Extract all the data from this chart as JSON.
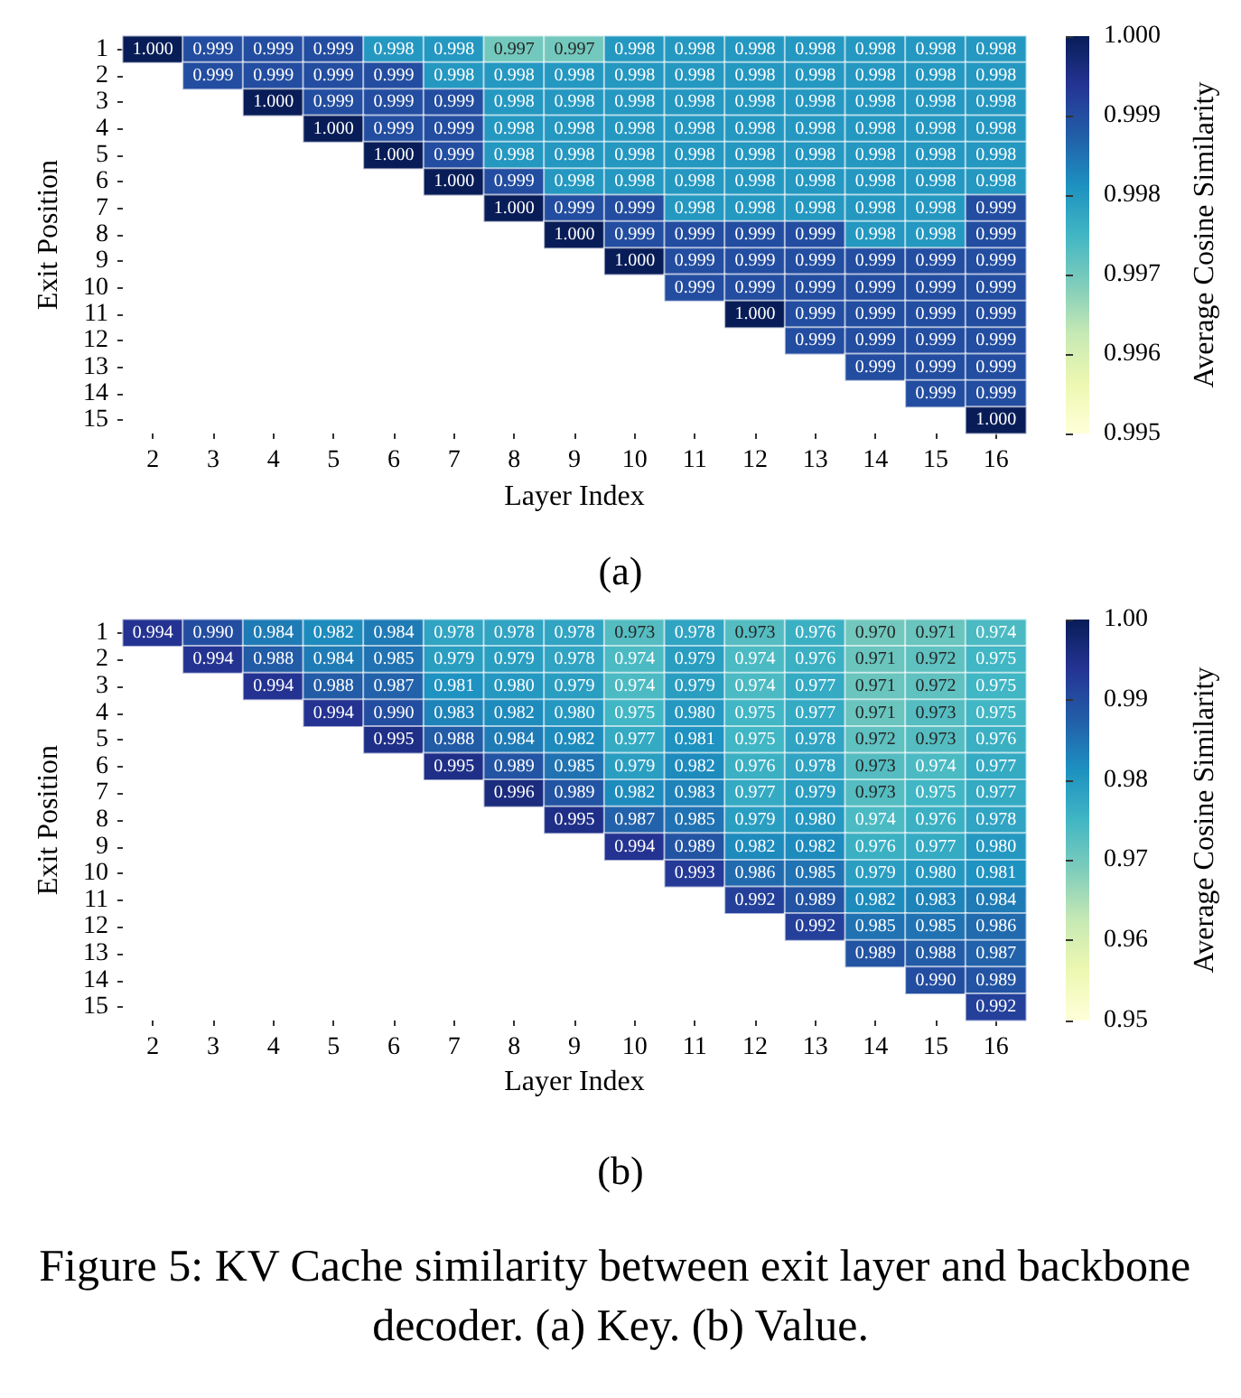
{
  "chart_data": [
    {
      "type": "heatmap",
      "title": "(a)",
      "xlabel": "Layer Index",
      "ylabel": "Exit Position",
      "clabel": "Average Cosine Similarity",
      "categories": [
        "2",
        "3",
        "4",
        "5",
        "6",
        "7",
        "8",
        "9",
        "10",
        "11",
        "12",
        "13",
        "14",
        "15",
        "16"
      ],
      "y_categories": [
        "1",
        "2",
        "3",
        "4",
        "5",
        "6",
        "7",
        "8",
        "9",
        "10",
        "11",
        "12",
        "13",
        "14",
        "15"
      ],
      "clim": [
        0.995,
        1.0
      ],
      "cticks": [
        0.995,
        0.996,
        0.997,
        0.998,
        0.999,
        {
          "value": 1.0,
          "label": "1.000"
        }
      ],
      "cells": [
        [
          1.0,
          0.999,
          0.999,
          0.999,
          0.998,
          0.998,
          0.997,
          0.997,
          0.998,
          0.998,
          0.998,
          0.998,
          0.998,
          0.998,
          0.998
        ],
        [
          null,
          0.999,
          0.999,
          0.999,
          0.999,
          0.998,
          0.998,
          0.998,
          0.998,
          0.998,
          0.998,
          0.998,
          0.998,
          0.998,
          0.998
        ],
        [
          null,
          null,
          1.0,
          0.999,
          0.999,
          0.999,
          0.998,
          0.998,
          0.998,
          0.998,
          0.998,
          0.998,
          0.998,
          0.998,
          0.998
        ],
        [
          null,
          null,
          null,
          1.0,
          0.999,
          0.999,
          0.998,
          0.998,
          0.998,
          0.998,
          0.998,
          0.998,
          0.998,
          0.998,
          0.998
        ],
        [
          null,
          null,
          null,
          null,
          1.0,
          0.999,
          0.998,
          0.998,
          0.998,
          0.998,
          0.998,
          0.998,
          0.998,
          0.998,
          0.998
        ],
        [
          null,
          null,
          null,
          null,
          null,
          1.0,
          0.999,
          0.998,
          0.998,
          0.998,
          0.998,
          0.998,
          0.998,
          0.998,
          0.998
        ],
        [
          null,
          null,
          null,
          null,
          null,
          null,
          1.0,
          0.999,
          0.999,
          0.998,
          0.998,
          0.998,
          0.998,
          0.998,
          0.999
        ],
        [
          null,
          null,
          null,
          null,
          null,
          null,
          null,
          1.0,
          0.999,
          0.999,
          0.999,
          0.999,
          0.998,
          0.998,
          0.999
        ],
        [
          null,
          null,
          null,
          null,
          null,
          null,
          null,
          null,
          1.0,
          0.999,
          0.999,
          0.999,
          0.999,
          0.999,
          0.999
        ],
        [
          null,
          null,
          null,
          null,
          null,
          null,
          null,
          null,
          null,
          0.999,
          0.999,
          0.999,
          0.999,
          0.999,
          0.999
        ],
        [
          null,
          null,
          null,
          null,
          null,
          null,
          null,
          null,
          null,
          null,
          1.0,
          0.999,
          0.999,
          0.999,
          0.999
        ],
        [
          null,
          null,
          null,
          null,
          null,
          null,
          null,
          null,
          null,
          null,
          null,
          0.999,
          0.999,
          0.999,
          0.999
        ],
        [
          null,
          null,
          null,
          null,
          null,
          null,
          null,
          null,
          null,
          null,
          null,
          null,
          0.999,
          0.999,
          0.999
        ],
        [
          null,
          null,
          null,
          null,
          null,
          null,
          null,
          null,
          null,
          null,
          null,
          null,
          null,
          0.999,
          0.999
        ],
        [
          null,
          null,
          null,
          null,
          null,
          null,
          null,
          null,
          null,
          null,
          null,
          null,
          null,
          null,
          1.0
        ]
      ],
      "cell_labels": [
        [
          "1.000",
          "0.999",
          "0.999",
          "0.999",
          "0.998",
          "0.998",
          "0.997",
          "0.997",
          "0.998",
          "0.998",
          "0.998",
          "0.998",
          "0.998",
          "0.998",
          "0.998"
        ],
        [
          null,
          "0.999",
          "0.999",
          "0.999",
          "0.999",
          "0.998",
          "0.998",
          "0.998",
          "0.998",
          "0.998",
          "0.998",
          "0.998",
          "0.998",
          "0.998",
          "0.998"
        ],
        [
          null,
          null,
          "1.000",
          "0.999",
          "0.999",
          "0.999",
          "0.998",
          "0.998",
          "0.998",
          "0.998",
          "0.998",
          "0.998",
          "0.998",
          "0.998",
          "0.998"
        ],
        [
          null,
          null,
          null,
          "1.000",
          "0.999",
          "0.999",
          "0.998",
          "0.998",
          "0.998",
          "0.998",
          "0.998",
          "0.998",
          "0.998",
          "0.998",
          "0.998"
        ],
        [
          null,
          null,
          null,
          null,
          "1.000",
          "0.999",
          "0.998",
          "0.998",
          "0.998",
          "0.998",
          "0.998",
          "0.998",
          "0.998",
          "0.998",
          "0.998"
        ],
        [
          null,
          null,
          null,
          null,
          null,
          "1.000",
          "0.999",
          "0.998",
          "0.998",
          "0.998",
          "0.998",
          "0.998",
          "0.998",
          "0.998",
          "0.998"
        ],
        [
          null,
          null,
          null,
          null,
          null,
          null,
          "1.000",
          "0.999",
          "0.999",
          "0.998",
          "0.998",
          "0.998",
          "0.998",
          "0.998",
          "0.999"
        ],
        [
          null,
          null,
          null,
          null,
          null,
          null,
          null,
          "1.000",
          "0.999",
          "0.999",
          "0.999",
          "0.999",
          "0.998",
          "0.998",
          "0.999"
        ],
        [
          null,
          null,
          null,
          null,
          null,
          null,
          null,
          null,
          "1.000",
          "0.999",
          "0.999",
          "0.999",
          "0.999",
          "0.999",
          "0.999"
        ],
        [
          null,
          null,
          null,
          null,
          null,
          null,
          null,
          null,
          null,
          "0.999",
          "0.999",
          "0.999",
          "0.999",
          "0.999",
          "0.999"
        ],
        [
          null,
          null,
          null,
          null,
          null,
          null,
          null,
          null,
          null,
          null,
          "1.000",
          "0.999",
          "0.999",
          "0.999",
          "0.999"
        ],
        [
          null,
          null,
          null,
          null,
          null,
          null,
          null,
          null,
          null,
          null,
          null,
          "0.999",
          "0.999",
          "0.999",
          "0.999"
        ],
        [
          null,
          null,
          null,
          null,
          null,
          null,
          null,
          null,
          null,
          null,
          null,
          null,
          "0.999",
          "0.999",
          "0.999"
        ],
        [
          null,
          null,
          null,
          null,
          null,
          null,
          null,
          null,
          null,
          null,
          null,
          null,
          null,
          "0.999",
          "0.999"
        ],
        [
          null,
          null,
          null,
          null,
          null,
          null,
          null,
          null,
          null,
          null,
          null,
          null,
          null,
          null,
          "1.000"
        ]
      ]
    },
    {
      "type": "heatmap",
      "title": "(b)",
      "xlabel": "Layer Index",
      "ylabel": "Exit Position",
      "clabel": "Average Cosine Similarity",
      "annotations": [
        "Figure 5: KV Cache similarity between exit layer and backbone decoder. (a) Key. (b) Value."
      ],
      "categories": [
        "2",
        "3",
        "4",
        "5",
        "6",
        "7",
        "8",
        "9",
        "10",
        "11",
        "12",
        "13",
        "14",
        "15",
        "16"
      ],
      "y_categories": [
        "1",
        "2",
        "3",
        "4",
        "5",
        "6",
        "7",
        "8",
        "9",
        "10",
        "11",
        "12",
        "13",
        "14",
        "15"
      ],
      "clim": [
        0.95,
        1.0
      ],
      "cticks": [
        0.95,
        0.96,
        0.97,
        0.98,
        0.99,
        {
          "value": 1.0,
          "label": "1.00"
        }
      ],
      "cells": [
        [
          0.994,
          0.99,
          0.984,
          0.982,
          0.984,
          0.978,
          0.978,
          0.978,
          0.973,
          0.978,
          0.973,
          0.976,
          0.97,
          0.971,
          0.974
        ],
        [
          null,
          0.994,
          0.988,
          0.984,
          0.985,
          0.979,
          0.979,
          0.978,
          0.974,
          0.979,
          0.974,
          0.976,
          0.971,
          0.972,
          0.975
        ],
        [
          null,
          null,
          0.994,
          0.988,
          0.987,
          0.981,
          0.98,
          0.979,
          0.974,
          0.979,
          0.974,
          0.977,
          0.971,
          0.972,
          0.975
        ],
        [
          null,
          null,
          null,
          0.994,
          0.99,
          0.983,
          0.982,
          0.98,
          0.975,
          0.98,
          0.975,
          0.977,
          0.971,
          0.973,
          0.975
        ],
        [
          null,
          null,
          null,
          null,
          0.995,
          0.988,
          0.984,
          0.982,
          0.977,
          0.981,
          0.975,
          0.978,
          0.972,
          0.973,
          0.976
        ],
        [
          null,
          null,
          null,
          null,
          null,
          0.995,
          0.989,
          0.985,
          0.979,
          0.982,
          0.976,
          0.978,
          0.973,
          0.974,
          0.977
        ],
        [
          null,
          null,
          null,
          null,
          null,
          null,
          0.996,
          0.989,
          0.982,
          0.983,
          0.977,
          0.979,
          0.973,
          0.975,
          0.977
        ],
        [
          null,
          null,
          null,
          null,
          null,
          null,
          null,
          0.995,
          0.987,
          0.985,
          0.979,
          0.98,
          0.974,
          0.976,
          0.978
        ],
        [
          null,
          null,
          null,
          null,
          null,
          null,
          null,
          null,
          0.994,
          0.989,
          0.982,
          0.982,
          0.976,
          0.977,
          0.98
        ],
        [
          null,
          null,
          null,
          null,
          null,
          null,
          null,
          null,
          null,
          0.993,
          0.986,
          0.985,
          0.979,
          0.98,
          0.981
        ],
        [
          null,
          null,
          null,
          null,
          null,
          null,
          null,
          null,
          null,
          null,
          0.992,
          0.989,
          0.982,
          0.983,
          0.984
        ],
        [
          null,
          null,
          null,
          null,
          null,
          null,
          null,
          null,
          null,
          null,
          null,
          0.992,
          0.985,
          0.985,
          0.986
        ],
        [
          null,
          null,
          null,
          null,
          null,
          null,
          null,
          null,
          null,
          null,
          null,
          null,
          0.989,
          0.988,
          0.987
        ],
        [
          null,
          null,
          null,
          null,
          null,
          null,
          null,
          null,
          null,
          null,
          null,
          null,
          null,
          0.99,
          0.989
        ],
        [
          null,
          null,
          null,
          null,
          null,
          null,
          null,
          null,
          null,
          null,
          null,
          null,
          null,
          null,
          0.992
        ]
      ],
      "cell_labels": [
        [
          "0.994",
          "0.990",
          "0.984",
          "0.982",
          "0.984",
          "0.978",
          "0.978",
          "0.978",
          "0.973",
          "0.978",
          "0.973",
          "0.976",
          "0.970",
          "0.971",
          "0.974"
        ],
        [
          null,
          "0.994",
          "0.988",
          "0.984",
          "0.985",
          "0.979",
          "0.979",
          "0.978",
          "0.974",
          "0.979",
          "0.974",
          "0.976",
          "0.971",
          "0.972",
          "0.975"
        ],
        [
          null,
          null,
          "0.994",
          "0.988",
          "0.987",
          "0.981",
          "0.980",
          "0.979",
          "0.974",
          "0.979",
          "0.974",
          "0.977",
          "0.971",
          "0.972",
          "0.975"
        ],
        [
          null,
          null,
          null,
          "0.994",
          "0.990",
          "0.983",
          "0.982",
          "0.980",
          "0.975",
          "0.980",
          "0.975",
          "0.977",
          "0.971",
          "0.973",
          "0.975"
        ],
        [
          null,
          null,
          null,
          null,
          "0.995",
          "0.988",
          "0.984",
          "0.982",
          "0.977",
          "0.981",
          "0.975",
          "0.978",
          "0.972",
          "0.973",
          "0.976"
        ],
        [
          null,
          null,
          null,
          null,
          null,
          "0.995",
          "0.989",
          "0.985",
          "0.979",
          "0.982",
          "0.976",
          "0.978",
          "0.973",
          "0.974",
          "0.977"
        ],
        [
          null,
          null,
          null,
          null,
          null,
          null,
          "0.996",
          "0.989",
          "0.982",
          "0.983",
          "0.977",
          "0.979",
          "0.973",
          "0.975",
          "0.977"
        ],
        [
          null,
          null,
          null,
          null,
          null,
          null,
          null,
          "0.995",
          "0.987",
          "0.985",
          "0.979",
          "0.980",
          "0.974",
          "0.976",
          "0.978"
        ],
        [
          null,
          null,
          null,
          null,
          null,
          null,
          null,
          null,
          "0.994",
          "0.989",
          "0.982",
          "0.982",
          "0.976",
          "0.977",
          "0.980"
        ],
        [
          null,
          null,
          null,
          null,
          null,
          null,
          null,
          null,
          null,
          "0.993",
          "0.986",
          "0.985",
          "0.979",
          "0.980",
          "0.981"
        ],
        [
          null,
          null,
          null,
          null,
          null,
          null,
          null,
          null,
          null,
          null,
          "0.992",
          "0.989",
          "0.982",
          "0.983",
          "0.984"
        ],
        [
          null,
          null,
          null,
          null,
          null,
          null,
          null,
          null,
          null,
          null,
          null,
          "0.992",
          "0.985",
          "0.985",
          "0.986"
        ],
        [
          null,
          null,
          null,
          null,
          null,
          null,
          null,
          null,
          null,
          null,
          null,
          null,
          "0.989",
          "0.988",
          "0.987"
        ],
        [
          null,
          null,
          null,
          null,
          null,
          null,
          null,
          null,
          null,
          null,
          null,
          null,
          null,
          "0.990",
          "0.989"
        ],
        [
          null,
          null,
          null,
          null,
          null,
          null,
          null,
          null,
          null,
          null,
          null,
          null,
          null,
          null,
          "0.992"
        ]
      ]
    }
  ]
}
